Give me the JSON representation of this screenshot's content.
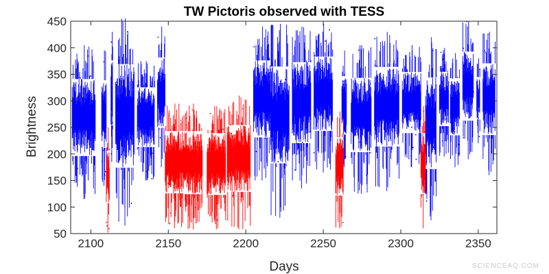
{
  "chart_data": {
    "type": "scatter",
    "title": "TW Pictoris observed with TESS",
    "xlabel": "Days",
    "ylabel": "Brightness",
    "xlim": [
      2087,
      2362
    ],
    "ylim": [
      50,
      450
    ],
    "xticks": [
      2100,
      2150,
      2200,
      2250,
      2300,
      2350
    ],
    "yticks": [
      50,
      100,
      150,
      200,
      250,
      300,
      350,
      400,
      450
    ],
    "grid": false,
    "legend": "none",
    "series": [
      {
        "color": "#0000ff",
        "segments": [
          {
            "x_start": 2088,
            "x_end": 2103,
            "y_min": 115,
            "y_max": 405
          },
          {
            "x_start": 2107,
            "x_end": 2110,
            "y_min": 140,
            "y_max": 395
          },
          {
            "x_start": 2113,
            "x_end": 2114,
            "y_min": 185,
            "y_max": 430
          },
          {
            "x_start": 2116,
            "x_end": 2128,
            "y_min": 65,
            "y_max": 455
          },
          {
            "x_start": 2130,
            "x_end": 2141,
            "y_min": 150,
            "y_max": 375
          },
          {
            "x_start": 2143,
            "x_end": 2148,
            "y_min": 175,
            "y_max": 440
          },
          {
            "x_start": 2205,
            "x_end": 2216,
            "y_min": 150,
            "y_max": 440
          },
          {
            "x_start": 2216,
            "x_end": 2228,
            "y_min": 80,
            "y_max": 445
          },
          {
            "x_start": 2230,
            "x_end": 2242,
            "y_min": 135,
            "y_max": 440
          },
          {
            "x_start": 2244,
            "x_end": 2256,
            "y_min": 165,
            "y_max": 445
          },
          {
            "x_start": 2262,
            "x_end": 2265,
            "y_min": 175,
            "y_max": 395
          },
          {
            "x_start": 2268,
            "x_end": 2281,
            "y_min": 125,
            "y_max": 405
          },
          {
            "x_start": 2283,
            "x_end": 2299,
            "y_min": 130,
            "y_max": 430
          },
          {
            "x_start": 2301,
            "x_end": 2313,
            "y_min": 175,
            "y_max": 405
          },
          {
            "x_start": 2316,
            "x_end": 2323,
            "y_min": 75,
            "y_max": 420
          },
          {
            "x_start": 2325,
            "x_end": 2331,
            "y_min": 195,
            "y_max": 400
          },
          {
            "x_start": 2332,
            "x_end": 2338,
            "y_min": 175,
            "y_max": 390
          },
          {
            "x_start": 2340,
            "x_end": 2347,
            "y_min": 190,
            "y_max": 450
          },
          {
            "x_start": 2349,
            "x_end": 2351,
            "y_min": 220,
            "y_max": 380
          },
          {
            "x_start": 2353,
            "x_end": 2361,
            "y_min": 160,
            "y_max": 430
          }
        ]
      },
      {
        "color": "#ff0000",
        "segments": [
          {
            "x_start": 2110,
            "x_end": 2112,
            "y_min": 52,
            "y_max": 250
          },
          {
            "x_start": 2148,
            "x_end": 2160,
            "y_min": 60,
            "y_max": 295
          },
          {
            "x_start": 2160,
            "x_end": 2172,
            "y_min": 58,
            "y_max": 295
          },
          {
            "x_start": 2175,
            "x_end": 2187,
            "y_min": 58,
            "y_max": 290
          },
          {
            "x_start": 2188,
            "x_end": 2203,
            "y_min": 58,
            "y_max": 310
          },
          {
            "x_start": 2258,
            "x_end": 2263,
            "y_min": 60,
            "y_max": 280
          },
          {
            "x_start": 2313,
            "x_end": 2316,
            "y_min": 60,
            "y_max": 290
          }
        ]
      }
    ]
  },
  "watermark": "SCIENCEAQ.COM"
}
